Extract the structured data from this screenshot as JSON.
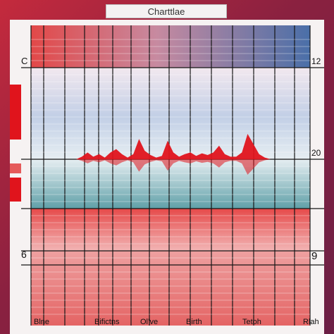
{
  "chart_data": {
    "type": "area",
    "title": "Charttlae",
    "y_ticks_left": [
      "C",
      "6"
    ],
    "y_ticks_right": [
      "12",
      "20",
      "9"
    ],
    "x_ticks": [
      "Blne",
      "Bifictns",
      "Ol’ve",
      "Birth",
      "Tetoh",
      "Rlah"
    ],
    "x": [
      0,
      1,
      2,
      3,
      4,
      5,
      6,
      7,
      8,
      9,
      10,
      11,
      12,
      13,
      14,
      15,
      16,
      17,
      18,
      19,
      20,
      21,
      22,
      23,
      24,
      25,
      26,
      27,
      28,
      29,
      30,
      31,
      32,
      33,
      34,
      35,
      36
    ],
    "values": [
      0,
      0,
      0.3,
      0.8,
      0.3,
      0.6,
      0.2,
      0.8,
      1.2,
      0.6,
      0.2,
      0.6,
      2.4,
      1.0,
      0.5,
      0.2,
      0.4,
      2.2,
      0.8,
      0.3,
      0.6,
      0.8,
      0.4,
      0.7,
      0.5,
      0.8,
      1.6,
      0.6,
      0.3,
      0.3,
      0.8,
      3.0,
      1.8,
      0.6,
      0.2,
      0,
      0
    ],
    "grid": true,
    "colors": {
      "series": "#e0141c",
      "grid": "#151515"
    }
  }
}
